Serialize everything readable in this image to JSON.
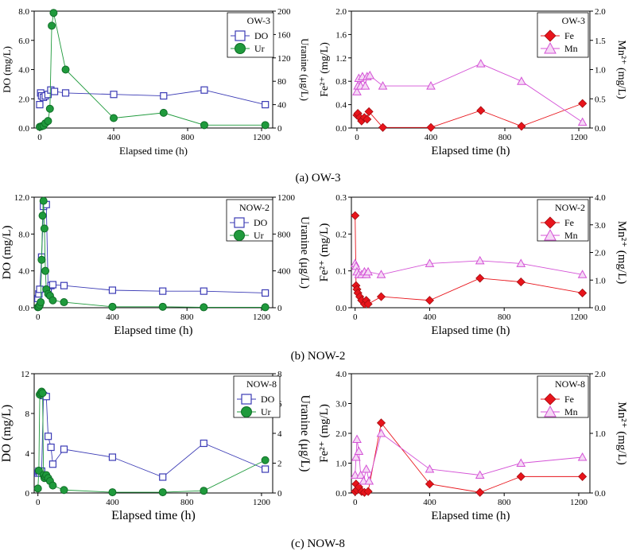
{
  "figure": {
    "captions": [
      "(a) OW-3",
      "(b) NOW-2",
      "(c) NOW-8"
    ]
  },
  "colors": {
    "do": "#3b3bb5",
    "uranine": "#1f9a3c",
    "fe": "#e8141b",
    "mn": "#d452d6"
  },
  "chart_data": [
    {
      "id": "a-left",
      "type": "line",
      "title": "",
      "legend_title": "OW-3",
      "xlabel": "Elapsed time (h)",
      "ylabel": "DO (mg/L)",
      "y2label": "Uranine (μg/L)",
      "xlim": [
        -30,
        1260
      ],
      "xticks": [
        "0",
        "400",
        "800",
        "1200"
      ],
      "xtickvals": [
        0,
        400,
        800,
        1200
      ],
      "ylim": [
        0,
        8
      ],
      "yticks": [
        "0.0",
        "2.0",
        "4.0",
        "6.0",
        "8.0"
      ],
      "ytickvals": [
        0,
        2,
        4,
        6,
        8
      ],
      "y2lim": [
        0,
        200
      ],
      "y2ticks": [
        "0",
        "40",
        "80",
        "120",
        "160",
        "200"
      ],
      "y2tickvals": [
        0,
        40,
        80,
        120,
        160,
        200
      ],
      "series": [
        {
          "name": "DO",
          "axis": "left",
          "marker": "square",
          "x": [
            0,
            5,
            10,
            20,
            30,
            45,
            60,
            80,
            140,
            400,
            670,
            890,
            1220
          ],
          "y": [
            1.6,
            2.4,
            2.2,
            2.1,
            2.2,
            2.3,
            2.6,
            2.5,
            2.4,
            2.3,
            2.2,
            2.6,
            1.6
          ]
        },
        {
          "name": "Ur",
          "axis": "right",
          "marker": "circle",
          "x": [
            0,
            10,
            20,
            30,
            45,
            55,
            65,
            75,
            140,
            400,
            670,
            890,
            1220
          ],
          "y": [
            2,
            3,
            4,
            8,
            12,
            33,
            175,
            197,
            100,
            17,
            26,
            5,
            5
          ]
        }
      ]
    },
    {
      "id": "a-right",
      "type": "line",
      "title": "",
      "legend_title": "OW-3",
      "xlabel": "Elapsed time (h)",
      "ylabel": "Fe²⁺ (mg/L)",
      "y2label": "Mn²⁺ (mg/L)",
      "xlim": [
        -30,
        1260
      ],
      "xticks": [
        "0",
        "400",
        "800",
        "1200"
      ],
      "xtickvals": [
        0,
        400,
        800,
        1200
      ],
      "ylim": [
        0,
        2
      ],
      "yticks": [
        "0.0",
        "0.4",
        "0.8",
        "1.2",
        "1.6",
        "2.0"
      ],
      "ytickvals": [
        0,
        0.4,
        0.8,
        1.2,
        1.6,
        2.0
      ],
      "y2lim": [
        0,
        2
      ],
      "y2ticks": [
        "0.0",
        "0.5",
        "1.0",
        "1.5",
        "2.0"
      ],
      "y2tickvals": [
        0,
        0.5,
        1.0,
        1.5,
        2.0
      ],
      "series": [
        {
          "name": "Fe",
          "axis": "left",
          "marker": "diamond",
          "x": [
            0,
            5,
            15,
            25,
            40,
            55,
            65,
            140,
            400,
            670,
            890,
            1220
          ],
          "y": [
            0.22,
            0.25,
            0.18,
            0.12,
            0.18,
            0.15,
            0.28,
            0.01,
            0.01,
            0.3,
            0.03,
            0.42
          ]
        },
        {
          "name": "Mn",
          "axis": "right",
          "marker": "triangle",
          "x": [
            0,
            5,
            10,
            20,
            30,
            45,
            55,
            70,
            140,
            400,
            670,
            890,
            1220
          ],
          "y": [
            0.62,
            0.72,
            0.85,
            0.72,
            0.88,
            0.72,
            0.88,
            0.9,
            0.72,
            0.72,
            1.1,
            0.8,
            0.1
          ]
        }
      ]
    },
    {
      "id": "b-left",
      "type": "line",
      "title": "",
      "legend_title": "NOW-2",
      "xlabel": "Elapsed time (h)",
      "ylabel": "DO (mg/L)",
      "y2label": "Uranine (μg/L)",
      "xlim": [
        -20,
        1260
      ],
      "xticks": [
        "0",
        "400",
        "800",
        "1200"
      ],
      "xtickvals": [
        0,
        400,
        800,
        1200
      ],
      "ylim": [
        0,
        12
      ],
      "yticks": [
        "0.0",
        "4.0",
        "8.0",
        "12.0"
      ],
      "ytickvals": [
        0,
        4,
        8,
        12
      ],
      "y2lim": [
        0,
        1200
      ],
      "y2ticks": [
        "0",
        "400",
        "800",
        "1200"
      ],
      "y2tickvals": [
        0,
        400,
        800,
        1200
      ],
      "series": [
        {
          "name": "DO",
          "axis": "left",
          "marker": "square",
          "x": [
            0,
            5,
            10,
            20,
            30,
            45,
            55,
            70,
            80,
            140,
            400,
            670,
            890,
            1220
          ],
          "y": [
            1.0,
            1.5,
            2.0,
            5.5,
            11.0,
            11.2,
            2.0,
            2.4,
            2.5,
            2.4,
            1.9,
            1.8,
            1.8,
            1.6
          ]
        },
        {
          "name": "Ur",
          "axis": "right",
          "marker": "circle",
          "x": [
            0,
            5,
            10,
            15,
            20,
            25,
            30,
            35,
            40,
            45,
            55,
            65,
            80,
            140,
            400,
            670,
            890,
            1220
          ],
          "y": [
            5,
            10,
            30,
            60,
            520,
            1000,
            1160,
            860,
            400,
            200,
            150,
            130,
            80,
            60,
            10,
            10,
            5,
            5
          ]
        }
      ]
    },
    {
      "id": "b-right",
      "type": "line",
      "title": "",
      "legend_title": "NOW-2",
      "xlabel": "Elapsed time (h)",
      "ylabel": "Fe²⁺ (mg/L)",
      "y2label": "Mn²⁺ (mg/L)",
      "xlim": [
        -20,
        1260
      ],
      "xticks": [
        "0",
        "400",
        "800",
        "1200"
      ],
      "xtickvals": [
        0,
        400,
        800,
        1200
      ],
      "ylim": [
        0,
        0.3
      ],
      "yticks": [
        "0.0",
        "0.1",
        "0.2",
        "0.3"
      ],
      "ytickvals": [
        0,
        0.1,
        0.2,
        0.3
      ],
      "y2lim": [
        0,
        4.0
      ],
      "y2ticks": [
        "0.0",
        "1.0",
        "2.0",
        "3.0",
        "4.0"
      ],
      "y2tickvals": [
        0,
        1,
        2,
        3,
        4
      ],
      "series": [
        {
          "name": "Fe",
          "axis": "left",
          "marker": "diamond",
          "x": [
            0,
            5,
            10,
            15,
            25,
            35,
            50,
            60,
            70,
            140,
            400,
            670,
            890,
            1220
          ],
          "y": [
            0.25,
            0.06,
            0.05,
            0.04,
            0.03,
            0.02,
            0.01,
            0.02,
            0.01,
            0.03,
            0.02,
            0.08,
            0.07,
            0.04
          ]
        },
        {
          "name": "Mn",
          "axis": "right",
          "marker": "triangle",
          "x": [
            0,
            5,
            10,
            20,
            35,
            50,
            60,
            70,
            140,
            400,
            670,
            890,
            1220
          ],
          "y": [
            1.6,
            1.5,
            1.3,
            1.2,
            1.2,
            1.3,
            1.2,
            1.3,
            1.2,
            1.6,
            1.7,
            1.6,
            1.2
          ]
        }
      ]
    },
    {
      "id": "c-left",
      "type": "line",
      "title": "",
      "legend_title": "NOW-8",
      "xlabel": "Elapsed time (h)",
      "ylabel": "DO (mg/L)",
      "y2label": "Uranine (μg/L)",
      "xlim": [
        -20,
        1260
      ],
      "xticks": [
        "0",
        "400",
        "800",
        "1200"
      ],
      "xtickvals": [
        0,
        400,
        800,
        1200
      ],
      "ylim": [
        0,
        12
      ],
      "yticks": [
        "0",
        "4",
        "8",
        "12"
      ],
      "ytickvals": [
        0,
        4,
        8,
        12
      ],
      "y2lim": [
        0,
        8
      ],
      "y2ticks": [
        "0",
        "2",
        "4",
        "6",
        "8"
      ],
      "y2tickvals": [
        0,
        2,
        4,
        6,
        8
      ],
      "series": [
        {
          "name": "DO",
          "axis": "left",
          "marker": "square",
          "x": [
            0,
            5,
            10,
            20,
            30,
            45,
            55,
            70,
            80,
            140,
            400,
            670,
            890,
            1220
          ],
          "y": [
            2.0,
            2.2,
            2.0,
            2.2,
            9.8,
            9.7,
            5.7,
            4.6,
            2.9,
            4.4,
            3.6,
            1.6,
            5.0,
            2.4
          ]
        },
        {
          "name": "Ur",
          "axis": "right",
          "marker": "circle",
          "x": [
            0,
            5,
            10,
            15,
            20,
            25,
            30,
            35,
            40,
            45,
            55,
            65,
            80,
            140,
            400,
            670,
            890,
            1220
          ],
          "y": [
            0.3,
            1.5,
            6.6,
            6.7,
            6.8,
            6.7,
            1.2,
            1.0,
            1.1,
            1.2,
            1.0,
            0.8,
            0.5,
            0.2,
            0.05,
            0.05,
            0.15,
            2.2
          ]
        }
      ]
    },
    {
      "id": "c-right",
      "type": "line",
      "title": "",
      "legend_title": "NOW-8",
      "xlabel": "Elapsed time (h)",
      "ylabel": "Fe²⁺ (mg/L)",
      "y2label": "Mn²⁺ (mg/L)",
      "xlim": [
        -20,
        1260
      ],
      "xticks": [
        "0",
        "400",
        "800",
        "1200"
      ],
      "xtickvals": [
        0,
        400,
        800,
        1200
      ],
      "ylim": [
        0,
        4.0
      ],
      "yticks": [
        "0.0",
        "1.0",
        "2.0",
        "3.0",
        "4.0"
      ],
      "ytickvals": [
        0,
        1,
        2,
        3,
        4
      ],
      "y2lim": [
        0,
        2.0
      ],
      "y2ticks": [
        "0.0",
        "1.0",
        "2.0"
      ],
      "y2tickvals": [
        0,
        1,
        2
      ],
      "series": [
        {
          "name": "Fe",
          "axis": "left",
          "marker": "diamond",
          "x": [
            0,
            5,
            10,
            20,
            35,
            50,
            70,
            140,
            400,
            670,
            890,
            1220
          ],
          "y": [
            0.05,
            0.3,
            0.1,
            0.2,
            0.05,
            0.02,
            0.05,
            2.35,
            0.3,
            0.02,
            0.55,
            0.55
          ]
        },
        {
          "name": "Mn",
          "axis": "right",
          "marker": "triangle",
          "x": [
            0,
            5,
            10,
            20,
            30,
            45,
            60,
            75,
            140,
            400,
            670,
            890,
            1220
          ],
          "y": [
            0.3,
            0.6,
            0.9,
            0.7,
            0.3,
            0.2,
            0.4,
            0.2,
            1.0,
            0.4,
            0.3,
            0.5,
            0.6
          ]
        }
      ]
    }
  ]
}
